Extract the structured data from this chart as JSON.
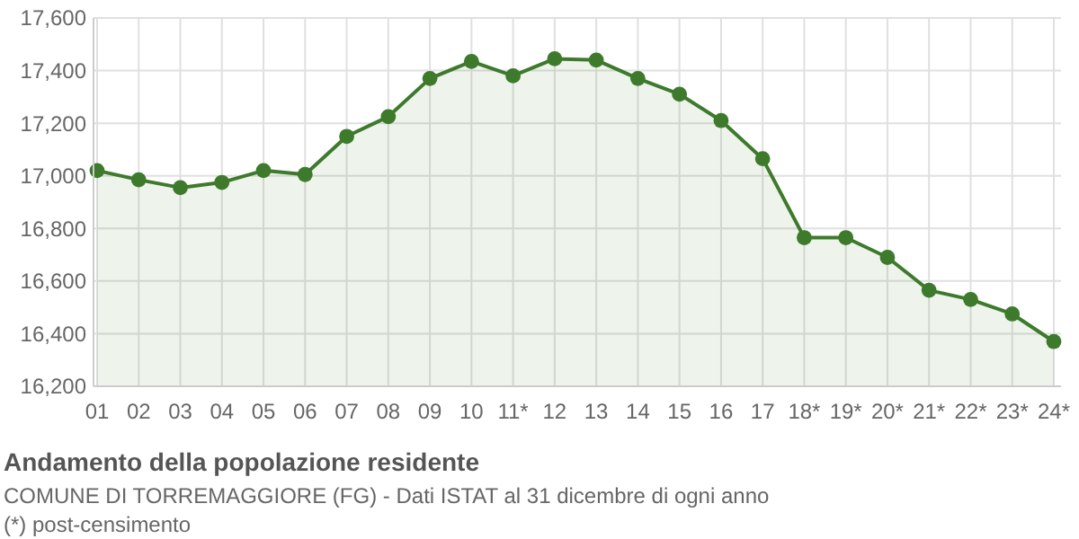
{
  "chart_data": {
    "type": "area",
    "title": "Andamento della popolazione residente",
    "subtitle": "COMUNE DI TORREMAGGIORE (FG) - Dati ISTAT al 31 dicembre di ogni anno",
    "annotations": [
      "(*) post-censimento"
    ],
    "categories": [
      "01",
      "02",
      "03",
      "04",
      "05",
      "06",
      "07",
      "08",
      "09",
      "10",
      "11*",
      "12",
      "13",
      "14",
      "15",
      "16",
      "17",
      "18*",
      "19*",
      "20*",
      "21*",
      "22*",
      "23*",
      "24*"
    ],
    "series": [
      {
        "color": "#3d7a2c",
        "values": [
          17020,
          16985,
          16955,
          16975,
          17020,
          17005,
          17150,
          17225,
          17370,
          17435,
          17380,
          17445,
          17440,
          17370,
          17310,
          17210,
          17065,
          16765,
          16765,
          16690,
          16565,
          16530,
          16475,
          16370
        ]
      }
    ],
    "ylim": [
      16200,
      17600
    ],
    "yticks": [
      {
        "value": 16200,
        "label": "16,200"
      },
      {
        "value": 16400,
        "label": "16,400"
      },
      {
        "value": 16600,
        "label": "16,600"
      },
      {
        "value": 16800,
        "label": "16,800"
      },
      {
        "value": 17000,
        "label": "17,000"
      },
      {
        "value": 17200,
        "label": "17,200"
      },
      {
        "value": 17400,
        "label": "17,400"
      },
      {
        "value": 17600,
        "label": "17,600"
      }
    ],
    "grid": true,
    "marker": "circle",
    "line_style": "solid"
  }
}
